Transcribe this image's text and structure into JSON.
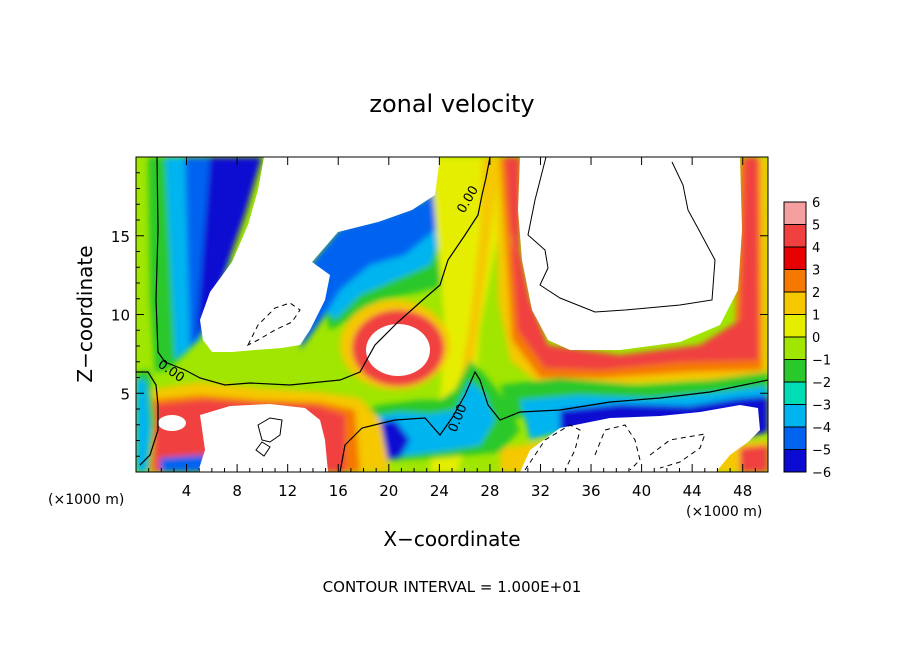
{
  "chart_data": {
    "type": "heatmap",
    "title": "zonal velocity",
    "xlabel": "X−coordinate",
    "ylabel": "Z−coordinate",
    "x_unit_left": "(×1000 m)",
    "x_unit_right": "(×1000 m)",
    "xlim": [
      0,
      50
    ],
    "ylim": [
      0,
      20
    ],
    "x_ticks": [
      4,
      8,
      12,
      16,
      20,
      24,
      28,
      32,
      36,
      40,
      44,
      48
    ],
    "y_ticks": [
      5,
      10,
      15
    ],
    "colorbar": {
      "levels": [
        6,
        5,
        4,
        3,
        2,
        1,
        0,
        -1,
        -2,
        -3,
        -4,
        -5,
        -6
      ],
      "tick_labels": [
        "6",
        "5",
        "4",
        "3",
        "2",
        "1",
        "0",
        "−1",
        "−2",
        "−3",
        "−4",
        "−5",
        "−6"
      ],
      "colors": [
        "#f5a0a0",
        "#f04040",
        "#e60000",
        "#f57800",
        "#f5c800",
        "#e6ee00",
        "#a0e600",
        "#2ac82a",
        "#00dcb4",
        "#00b4f0",
        "#0064f0",
        "#0a0ad2",
        "#6e0aa0"
      ]
    },
    "contour_labels": [
      "0.00",
      "0.00",
      "0.00"
    ],
    "footer": "CONTOUR INTERVAL = 1.000E+01"
  }
}
